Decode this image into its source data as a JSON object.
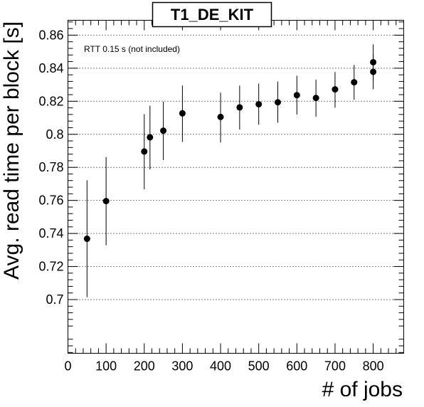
{
  "chart_data": {
    "type": "scatter",
    "title": "T1_DE_KIT",
    "xlabel": "# of jobs",
    "ylabel": "Avg. read time per block [s]",
    "annotation": "RTT 0.15 s (not included)",
    "xlim": [
      0,
      880
    ],
    "ylim": [
      0.6675,
      0.869
    ],
    "x_ticks": [
      0,
      100,
      200,
      300,
      400,
      500,
      600,
      700,
      800
    ],
    "y_ticks": [
      0.7,
      0.72,
      0.74,
      0.76,
      0.78,
      0.8,
      0.82,
      0.84,
      0.86
    ],
    "y_tick_labels": [
      "0.7",
      "0.72",
      "0.74",
      "0.76",
      "0.78",
      "0.8",
      "0.82",
      "0.84",
      "0.86"
    ],
    "grid": "horizontal-dotted",
    "marker_color": "#000000",
    "points": [
      {
        "x": 50,
        "y": 0.7368,
        "ylow": 0.7014,
        "yhigh": 0.7722
      },
      {
        "x": 100,
        "y": 0.7596,
        "ylow": 0.7329,
        "yhigh": 0.7863
      },
      {
        "x": 200,
        "y": 0.7896,
        "ylow": 0.7667,
        "yhigh": 0.8122
      },
      {
        "x": 215,
        "y": 0.7982,
        "ylow": 0.7788,
        "yhigh": 0.8173
      },
      {
        "x": 250,
        "y": 0.8022,
        "ylow": 0.7844,
        "yhigh": 0.8197
      },
      {
        "x": 300,
        "y": 0.8127,
        "ylow": 0.7954,
        "yhigh": 0.8295
      },
      {
        "x": 400,
        "y": 0.8105,
        "ylow": 0.795,
        "yhigh": 0.8252
      },
      {
        "x": 450,
        "y": 0.8163,
        "ylow": 0.8029,
        "yhigh": 0.8295
      },
      {
        "x": 500,
        "y": 0.8182,
        "ylow": 0.8058,
        "yhigh": 0.8307
      },
      {
        "x": 550,
        "y": 0.8194,
        "ylow": 0.807,
        "yhigh": 0.8319
      },
      {
        "x": 600,
        "y": 0.8237,
        "ylow": 0.812,
        "yhigh": 0.8354
      },
      {
        "x": 650,
        "y": 0.822,
        "ylow": 0.8107,
        "yhigh": 0.8331
      },
      {
        "x": 700,
        "y": 0.8272,
        "ylow": 0.8161,
        "yhigh": 0.8377
      },
      {
        "x": 750,
        "y": 0.8315,
        "ylow": 0.8209,
        "yhigh": 0.842
      },
      {
        "x": 800,
        "y": 0.8378,
        "ylow": 0.8272,
        "yhigh": 0.8483
      },
      {
        "x": 800,
        "y": 0.8436,
        "ylow": 0.8327,
        "yhigh": 0.8544
      }
    ]
  }
}
